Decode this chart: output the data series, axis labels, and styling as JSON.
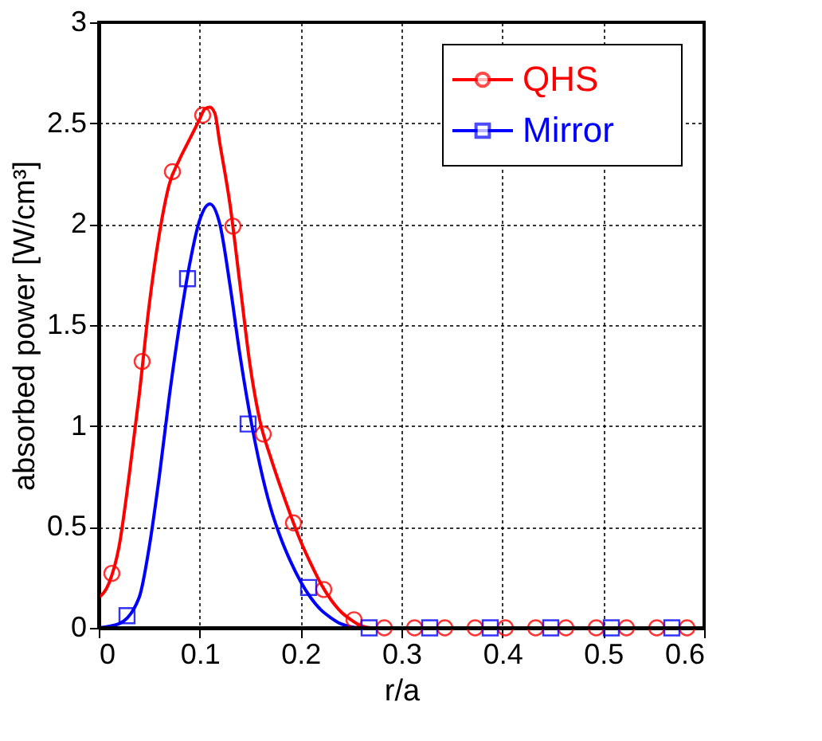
{
  "chart_data": {
    "type": "line",
    "xlabel": "r/a",
    "ylabel": "absorbed power [W/cm³]",
    "xlim": [
      0,
      0.6
    ],
    "ylim": [
      0,
      3
    ],
    "xticks": [
      0,
      0.1,
      0.2,
      0.3,
      0.4,
      0.5,
      0.6
    ],
    "yticks": [
      {
        "value": 0,
        "label": "0"
      },
      0.5,
      {
        "value": 1,
        "label": "1"
      },
      1.5,
      {
        "value": 2,
        "label": "2"
      },
      2.5,
      {
        "value": 3,
        "label": "3"
      }
    ],
    "grid": true,
    "legend": "top right",
    "line_style": "solid",
    "series": [
      {
        "name": "QHS",
        "color": "#ff0000",
        "type": "line",
        "marker": "none",
        "x": [
          0,
          0.01,
          0.02,
          0.03,
          0.04,
          0.05,
          0.06,
          0.07,
          0.08,
          0.09,
          0.1,
          0.105,
          0.11,
          0.115,
          0.12,
          0.13,
          0.14,
          0.15,
          0.16,
          0.17,
          0.18,
          0.19,
          0.2,
          0.21,
          0.22,
          0.23,
          0.24,
          0.25,
          0.26,
          0.27,
          0.28
        ],
        "values": [
          0.15,
          0.22,
          0.4,
          0.75,
          1.15,
          1.6,
          1.95,
          2.2,
          2.32,
          2.42,
          2.52,
          2.57,
          2.58,
          2.55,
          2.4,
          2.1,
          1.7,
          1.3,
          1.02,
          0.85,
          0.7,
          0.56,
          0.43,
          0.32,
          0.22,
          0.14,
          0.08,
          0.04,
          0.01,
          0,
          0
        ]
      },
      {
        "name": "Mirror",
        "color": "#0000ff",
        "type": "line",
        "marker": "none",
        "x": [
          0,
          0.02,
          0.04,
          0.05,
          0.06,
          0.07,
          0.08,
          0.09,
          0.1,
          0.11,
          0.12,
          0.13,
          0.14,
          0.15,
          0.16,
          0.17,
          0.18,
          0.19,
          0.2,
          0.21,
          0.22,
          0.23,
          0.24,
          0.25,
          0.26,
          0.28
        ],
        "values": [
          0,
          0.02,
          0.15,
          0.4,
          0.75,
          1.15,
          1.5,
          1.8,
          2.02,
          2.1,
          2,
          1.7,
          1.35,
          1.05,
          0.8,
          0.6,
          0.45,
          0.33,
          0.23,
          0.15,
          0.09,
          0.05,
          0.02,
          0.005,
          0,
          0
        ]
      },
      {
        "color": "#ff0000",
        "type": "scatter",
        "marker": "circle",
        "x": [
          0.013,
          0.043,
          0.073,
          0.103,
          0.133,
          0.163,
          0.193,
          0.223,
          0.253,
          0.283,
          0.313,
          0.343,
          0.373,
          0.403,
          0.433,
          0.463,
          0.493,
          0.523,
          0.553,
          0.583
        ],
        "values": [
          0.27,
          1.32,
          2.26,
          2.54,
          1.99,
          0.96,
          0.52,
          0.19,
          0.04,
          0,
          0,
          0,
          0,
          0,
          0,
          0,
          0,
          0,
          0,
          0
        ]
      },
      {
        "color": "#0000ff",
        "type": "scatter",
        "marker": "square",
        "x": [
          0.028,
          0.088,
          0.148,
          0.208,
          0.268,
          0.328,
          0.388,
          0.448,
          0.508,
          0.568
        ],
        "values": [
          0.06,
          1.73,
          1.01,
          0.2,
          0,
          0,
          0,
          0,
          0,
          0
        ]
      }
    ]
  }
}
